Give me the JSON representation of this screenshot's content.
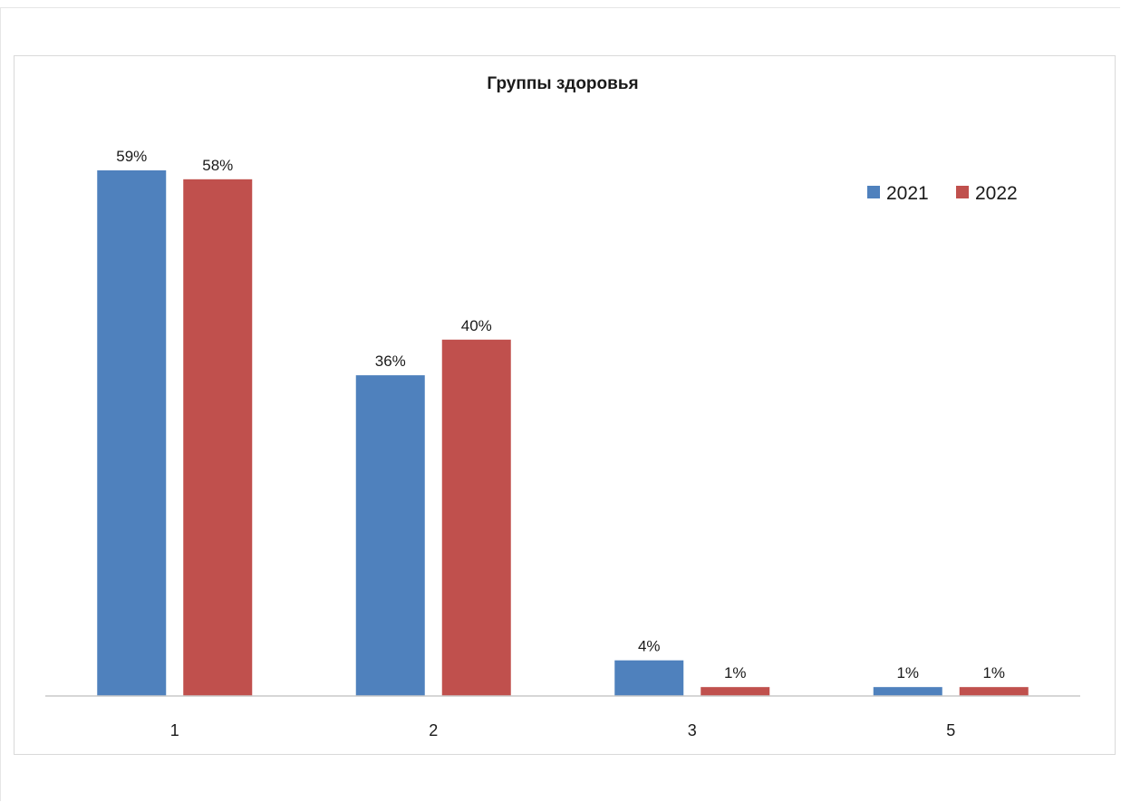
{
  "chart_data": {
    "type": "bar",
    "title": "Группы здоровья",
    "categories": [
      "1",
      "2",
      "3",
      "5"
    ],
    "series": [
      {
        "name": "2021",
        "color": "#4F81BD",
        "values": [
          59,
          36,
          4,
          1
        ],
        "labels": [
          "59%",
          "36%",
          "4%",
          "1%"
        ]
      },
      {
        "name": "2022",
        "color": "#C0504D",
        "values": [
          58,
          40,
          1,
          1
        ],
        "labels": [
          "58%",
          "40%",
          "1%",
          "1%"
        ]
      }
    ],
    "unit": "%",
    "ylim": [
      0,
      59
    ],
    "grid": false,
    "legend_position": "top-right",
    "xlabel": "",
    "ylabel": ""
  }
}
